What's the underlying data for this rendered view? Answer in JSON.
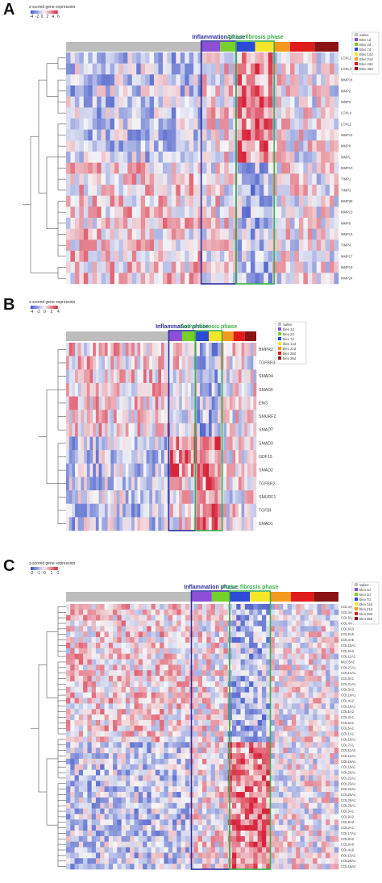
{
  "figure": {
    "panels": [
      {
        "id": "A",
        "letter": "A",
        "scale_title": "z-scored gene expression",
        "scale_ticks": [
          "-4",
          "-2",
          "0",
          "2",
          "4",
          "6"
        ],
        "phase_inflammation": "Inflammation phase",
        "phase_fibrosis": "Active fibrosis phase",
        "legend": [
          "Saline",
          "Bleo 1d",
          "Bleo 2d",
          "Bleo 7d",
          "Bleo 14d",
          "Bleo 21d",
          "Bleo 28d",
          "Bleo 35d"
        ],
        "genes": [
          "LOXL2",
          "LOXL3",
          "MMP14",
          "MMP2",
          "MMP3",
          "LOXL4",
          "LOXL1",
          "MMP12",
          "MMP8",
          "MMP1",
          "MMP10",
          "TIMP1",
          "TIMP3",
          "MMP28",
          "MMP13",
          "MMP9",
          "MMP15",
          "TIMP4",
          "MMP17",
          "MMP19",
          "MMP24"
        ]
      },
      {
        "id": "B",
        "letter": "B",
        "scale_title": "z-scored gene expression",
        "scale_ticks": [
          "-4",
          "-2",
          "0",
          "2",
          "4"
        ],
        "phase_inflammation": "Inflammation phase",
        "phase_fibrosis": "Active fibrosis phase",
        "legend": [
          "Saline",
          "bleo 1d",
          "bleo 2d",
          "bleo 7d",
          "bleo 14d",
          "bleo 21d",
          "bleo 28d",
          "bleo 35d"
        ],
        "genes": [
          "BMPR2",
          "TGFBR3",
          "SMAD4",
          "SMAD6",
          "ENG",
          "SMURF2",
          "SMAD7",
          "SMAD3",
          "GDF15",
          "SMAD2",
          "TGFBR2",
          "SMURF1",
          "TGFBI",
          "SMAD1"
        ]
      },
      {
        "id": "C",
        "letter": "C",
        "scale_title": "z-scored gene expression",
        "scale_ticks": [
          "-2",
          "-1",
          "0",
          "1",
          "2"
        ],
        "phase_inflammation": "Inflammation phase",
        "phase_fibrosis": "Active fibrosis phase",
        "legend": [
          "Saline",
          "bleo 1d",
          "bleo 2d",
          "bleo 7d",
          "bleo 14d",
          "bleo 21d",
          "bleo 28d",
          "bleo 35d"
        ],
        "genes": [
          "COL4A3",
          "COL4A1",
          "COL5A3",
          "COL4A4",
          "COL6A3",
          "COL6A5",
          "COL4A5",
          "COL13A1",
          "COL6A2",
          "COL11A1",
          "MUC5AC",
          "COL27A1",
          "COL14A1",
          "COL8A1",
          "COL21A1",
          "COL5A2",
          "COL18A1",
          "COL4A2",
          "COL16A1",
          "COL1A2",
          "COL3A1",
          "COL6A1",
          "COL5A1",
          "COL1A1",
          "COL10A1",
          "COL7A1",
          "COL11A2",
          "COL12A1",
          "COL15A1",
          "COL19A1",
          "COL20A1",
          "COL22A1",
          "COL23A1",
          "COL24A1",
          "COL25A1",
          "COL26A1",
          "COL28A1",
          "COL9A1",
          "COL9A2",
          "COL9A3",
          "COL2A1",
          "COL17A1",
          "COL8A2",
          "COL6A6",
          "COL4A6",
          "COL13A2",
          "COL29A1",
          "COL16A2"
        ]
      }
    ]
  },
  "chart_data": {
    "type": "heatmap",
    "groups": [
      "Saline",
      "Bleo 1d",
      "Bleo 2d",
      "Bleo 7d",
      "Bleo 14d",
      "Bleo 21d",
      "Bleo 28d",
      "Bleo 35d"
    ],
    "group_colors": [
      "#bdbdbd",
      "#8c4fd6",
      "#77cf2a",
      "#2b4bd6",
      "#f5e62a",
      "#f39a1e",
      "#e01b1b",
      "#8a1414"
    ],
    "color_scale": {
      "low": "#3f55c8",
      "mid": "#f5f5f7",
      "high": "#d8243a"
    },
    "phases": [
      {
        "name": "Inflammation phase",
        "groups": [
          "Bleo 1d",
          "Bleo 2d"
        ],
        "color": "#2e2ea0"
      },
      {
        "name": "Active fibrosis phase",
        "groups": [
          "Bleo 7d",
          "Bleo 14d"
        ],
        "color": "#3bb04a"
      }
    ],
    "panels": [
      {
        "panel": "A",
        "rows": 21,
        "columns": 62,
        "seed": 17,
        "dendrogram_branches": [
          2,
          4,
          7,
          6,
          2
        ]
      },
      {
        "panel": "B",
        "rows": 14,
        "columns": 64,
        "seed": 41,
        "dendrogram_branches": [
          7,
          7
        ]
      },
      {
        "panel": "C",
        "rows": 48,
        "columns": 64,
        "seed": 83,
        "dendrogram_branches": [
          10,
          14,
          8,
          16
        ]
      }
    ]
  }
}
